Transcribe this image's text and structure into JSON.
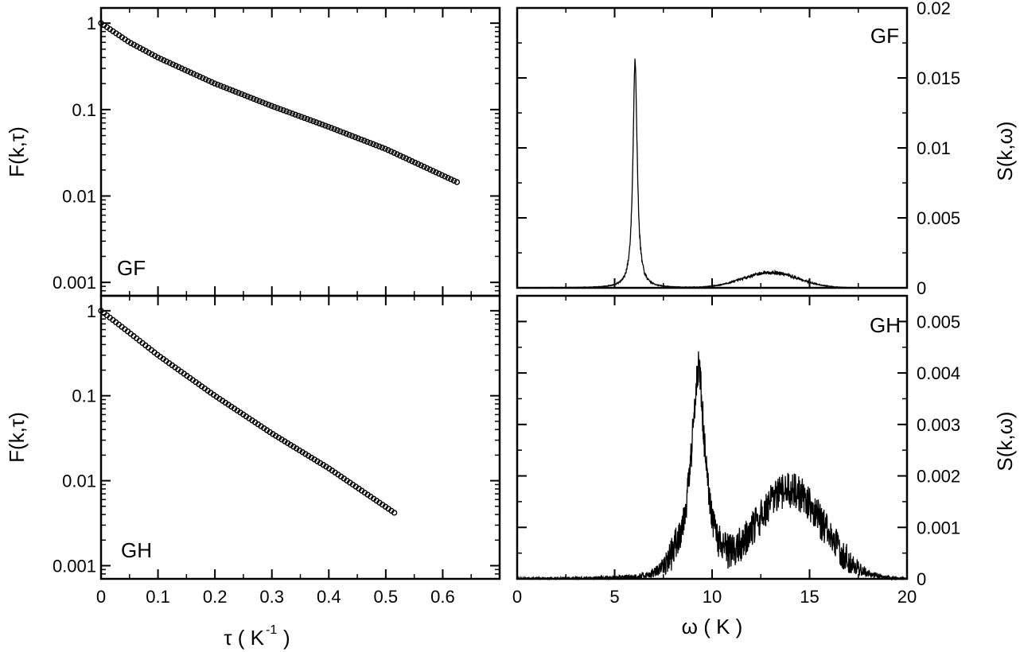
{
  "chart_data": [
    {
      "id": "left_top",
      "type": "scatter",
      "panel_label": "GF",
      "ylabel": "F(k,τ)",
      "y_scale": "log",
      "xlim": [
        0,
        0.7
      ],
      "ylim": [
        0.0007,
        1.5
      ],
      "x_ticks": [
        0,
        0.1,
        0.2,
        0.3,
        0.4,
        0.5,
        0.6
      ],
      "y_ticks": [
        {
          "value": 1,
          "label": "1"
        },
        {
          "value": 0.1,
          "label": "0.1"
        },
        {
          "value": 0.01,
          "label": "0.01"
        },
        {
          "value": 0.001,
          "label": "0.001"
        }
      ],
      "marker": "open-circle",
      "curve": {
        "x_start": 0,
        "x_end": 0.625,
        "n_points": 120,
        "knots_x": [
          0,
          0.05,
          0.1,
          0.2,
          0.3,
          0.4,
          0.5,
          0.625
        ],
        "knots_y": [
          1.0,
          0.6,
          0.4,
          0.2,
          0.11,
          0.063,
          0.035,
          0.0145
        ]
      }
    },
    {
      "id": "left_bottom",
      "type": "scatter",
      "panel_label": "GH",
      "ylabel": "F(k,τ)",
      "xlabel": "τ ( K",
      "xlabel_sup": "-1",
      "xlabel_close": ")",
      "y_scale": "log",
      "xlim": [
        0,
        0.7
      ],
      "ylim": [
        0.0007,
        1.5
      ],
      "x_ticks": [
        0,
        0.1,
        0.2,
        0.3,
        0.4,
        0.5,
        0.6
      ],
      "y_ticks": [
        {
          "value": 1,
          "label": "1"
        },
        {
          "value": 0.1,
          "label": "0.1"
        },
        {
          "value": 0.01,
          "label": "0.01"
        },
        {
          "value": 0.001,
          "label": "0.001"
        }
      ],
      "marker": "open-circle",
      "curve": {
        "x_start": 0,
        "x_end": 0.515,
        "n_points": 100,
        "knots_x": [
          0,
          0.05,
          0.1,
          0.2,
          0.3,
          0.4,
          0.515
        ],
        "knots_y": [
          1.0,
          0.55,
          0.3,
          0.1,
          0.036,
          0.014,
          0.0042
        ]
      }
    },
    {
      "id": "right_top",
      "type": "line",
      "panel_label": "GF",
      "ylabel": "S(k,ω)",
      "xlim": [
        0,
        20
      ],
      "ylim": [
        0,
        0.02
      ],
      "x_ticks": [
        0,
        5,
        10,
        15,
        20
      ],
      "y_ticks": [
        {
          "value": 0,
          "label": "0"
        },
        {
          "value": 0.005,
          "label": "0.005"
        },
        {
          "value": 0.01,
          "label": "0.01"
        },
        {
          "value": 0.015,
          "label": "0.015"
        },
        {
          "value": 0.02,
          "label": "0.02"
        }
      ],
      "peaks": [
        {
          "center": 6.05,
          "height": 0.0163,
          "width": 0.13,
          "shape": "lorentzian"
        },
        {
          "center": 13.0,
          "height": 0.0011,
          "width": 1.4,
          "shape": "gaussian"
        }
      ],
      "noise_amplitude": 0.00022,
      "seed": 7
    },
    {
      "id": "right_bottom",
      "type": "line",
      "panel_label": "GH",
      "ylabel": "S(k,ω)",
      "xlabel": "ω ( K )",
      "xlim": [
        0,
        20
      ],
      "ylim": [
        0,
        0.0055
      ],
      "x_ticks": [
        0,
        5,
        10,
        15,
        20
      ],
      "y_ticks": [
        {
          "value": 0,
          "label": "0"
        },
        {
          "value": 0.001,
          "label": "0.001"
        },
        {
          "value": 0.002,
          "label": "0.002"
        },
        {
          "value": 0.003,
          "label": "0.003"
        },
        {
          "value": 0.004,
          "label": "0.004"
        },
        {
          "value": 0.005,
          "label": "0.005"
        }
      ],
      "peaks": [
        {
          "center": 9.3,
          "height": 0.0035,
          "width": 0.38,
          "shape": "lorentzian"
        },
        {
          "center": 9.0,
          "height": 0.0006,
          "width": 0.8,
          "shape": "gaussian"
        },
        {
          "center": 14.0,
          "height": 0.0017,
          "width": 1.7,
          "shape": "gaussian"
        }
      ],
      "noise_amplitude": 0.00035,
      "seed": 13
    }
  ]
}
